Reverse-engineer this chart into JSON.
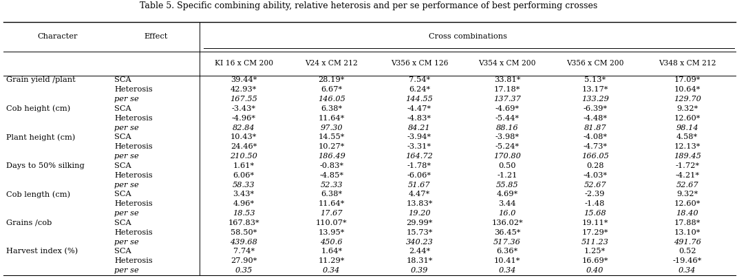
{
  "title": "Table 5. Specific combining ability, relative heterosis and per se performance of best performing crosses",
  "col_headers_row2": [
    "KI 16 x CM 200",
    "V24 x CM 212",
    "V356 x CM 126",
    "V354 x CM 200",
    "V356 x CM 200",
    "V348 x CM 212"
  ],
  "rows": [
    [
      "Grain yield /plant",
      "SCA",
      "39.44*",
      "28.19*",
      "7.54*",
      "33.81*",
      "5.13*",
      "17.09*"
    ],
    [
      "",
      "Heterosis",
      "42.93*",
      "6.67*",
      "6.24*",
      "17.18*",
      "13.17*",
      "10.64*"
    ],
    [
      "",
      "per se",
      "167.55",
      "146.05",
      "144.55",
      "137.37",
      "133.29",
      "129.70"
    ],
    [
      "Cob height (cm)",
      "SCA",
      "-3.43*",
      "6.38*",
      "-4.47*",
      "-4.69*",
      "-6.39*",
      "9.32*"
    ],
    [
      "",
      "Heterosis",
      "-4.96*",
      "11.64*",
      "-4.83*",
      "-5.44*",
      "-4.48*",
      "12.60*"
    ],
    [
      "",
      "per se",
      "82.84",
      "97.30",
      "84.21",
      "88.16",
      "81.87",
      "98.14"
    ],
    [
      "Plant height (cm)",
      "SCA",
      "10.43*",
      "14.55*",
      "-3.94*",
      "-3.98*",
      "-4.08*",
      "4.58*"
    ],
    [
      "",
      "Heterosis",
      "24.46*",
      "10.27*",
      "-3.31*",
      "-5.24*",
      "-4.73*",
      "12.13*"
    ],
    [
      "",
      "per se",
      "210.50",
      "186.49",
      "164.72",
      "170.80",
      "166.05",
      "189.45"
    ],
    [
      "Days to 50% silking",
      "SCA",
      "1.61*",
      "-0.83*",
      "-1.78*",
      "0.50",
      "0.28",
      "-1.72*"
    ],
    [
      "",
      "Heterosis",
      "6.06*",
      "-4.85*",
      "-6.06*",
      "-1.21",
      "-4.03*",
      "-4.21*"
    ],
    [
      "",
      "per se",
      "58.33",
      "52.33",
      "51.67",
      "55.85",
      "52.67",
      "52.67"
    ],
    [
      "Cob length (cm)",
      "SCA",
      "3.43*",
      "6.38*",
      "4.47*",
      "4.69*",
      "-2.39",
      "9.32*"
    ],
    [
      "",
      "Heterosis",
      "4.96*",
      "11.64*",
      "13.83*",
      "3.44",
      "-1.48",
      "12.60*"
    ],
    [
      "",
      "per se",
      "18.53",
      "17.67",
      "19.20",
      "16.0",
      "15.68",
      "18.40"
    ],
    [
      "Grains /cob",
      "SCA",
      "167.83*",
      "110.07*",
      "29.99*",
      "136.02*",
      "19.11*",
      "17.88*"
    ],
    [
      "",
      "Heterosis",
      "58.50*",
      "13.95*",
      "15.73*",
      "36.45*",
      "17.29*",
      "13.10*"
    ],
    [
      "",
      "per se",
      "439.68",
      "450.6",
      "340.23",
      "517.36",
      "511.23",
      "491.76"
    ],
    [
      "Harvest index (%)",
      "SCA",
      "7.74*",
      "1.64*",
      "2.44*",
      "6.36*",
      "1.25*",
      "0.52"
    ],
    [
      "",
      "Heterosis",
      "27.90*",
      "11.29*",
      "18.31*",
      "10.41*",
      "16.69*",
      "-19.46*"
    ],
    [
      "",
      "per se",
      "0.35",
      "0.34",
      "0.39",
      "0.34",
      "0.40",
      "0.34"
    ]
  ],
  "italic_rows": [
    2,
    5,
    8,
    11,
    14,
    17,
    20
  ],
  "background_color": "#ffffff",
  "font_size": 8.2
}
